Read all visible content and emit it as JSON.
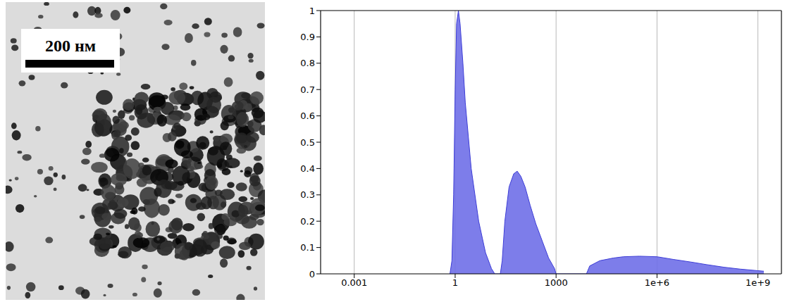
{
  "micrograph": {
    "scale_bar": "200 нм"
  },
  "chart_data": {
    "type": "area",
    "log": "x",
    "grid": true,
    "color": "#6f6fe8",
    "xlim": [
      0.0001,
      5000000000
    ],
    "xticks": [
      0.001,
      1,
      1000,
      {
        "value": 1000000,
        "label": "1e+6"
      },
      {
        "value": 1000000000,
        "label": "1e+9"
      }
    ],
    "ylim": [
      0,
      1
    ],
    "yticks": [
      0,
      0.1,
      0.2,
      0.3,
      0.4,
      0.5,
      0.6,
      0.7,
      0.8,
      0.9,
      1
    ],
    "x": [
      0.7,
      0.8,
      0.9,
      1,
      1.1,
      1.25,
      1.4,
      1.7,
      2,
      3,
      5,
      8,
      12,
      15,
      22,
      25,
      30,
      40,
      55,
      70,
      90,
      120,
      170,
      250,
      400,
      600,
      900,
      1000,
      8000,
      10000,
      20000,
      50000,
      100000,
      300000,
      1000000,
      3000000,
      10000000,
      30000000,
      100000000,
      300000000,
      1000000000,
      1500000000
    ],
    "values": [
      0,
      0.05,
      0.3,
      0.7,
      0.95,
      1.0,
      0.95,
      0.8,
      0.65,
      0.4,
      0.2,
      0.08,
      0.02,
      0,
      0,
      0.05,
      0.2,
      0.33,
      0.38,
      0.39,
      0.37,
      0.33,
      0.26,
      0.19,
      0.12,
      0.06,
      0.02,
      0,
      0,
      0.03,
      0.05,
      0.06,
      0.065,
      0.067,
      0.065,
      0.055,
      0.045,
      0.035,
      0.025,
      0.018,
      0.012,
      0.01
    ]
  }
}
